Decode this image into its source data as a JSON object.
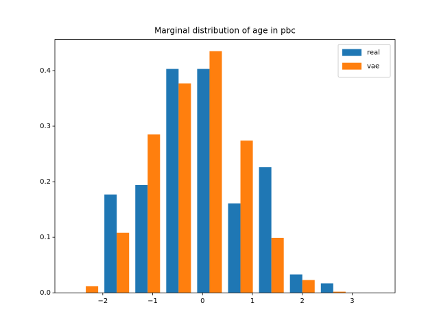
{
  "chart_data": {
    "type": "histogram",
    "title": "Marginal distribution of age in pbc",
    "bins": [
      -2.65,
      -2.03,
      -1.41,
      -0.79,
      -0.17,
      0.45,
      1.07,
      1.69,
      2.31,
      2.93,
      3.55
    ],
    "series": [
      {
        "name": "real",
        "color": "#1f77b4",
        "values": [
          0,
          0.177,
          0.194,
          0.403,
          0.403,
          0.161,
          0.226,
          0.033,
          0.017,
          0
        ]
      },
      {
        "name": "vae",
        "color": "#ff7f0e",
        "values": [
          0.012,
          0.108,
          0.285,
          0.377,
          0.435,
          0.274,
          0.099,
          0.023,
          0.002,
          0
        ]
      }
    ],
    "xlim": [
      -2.96,
      3.86
    ],
    "ylim": [
      0,
      0.456
    ],
    "xticks": [
      {
        "value": -2,
        "label": "−2"
      },
      {
        "value": -1,
        "label": "−1"
      },
      0,
      1,
      2,
      3
    ],
    "yticks": [
      {
        "value": 0,
        "label": "0.0"
      },
      0.1,
      0.2,
      0.3,
      0.4
    ],
    "legend": "upper right"
  }
}
